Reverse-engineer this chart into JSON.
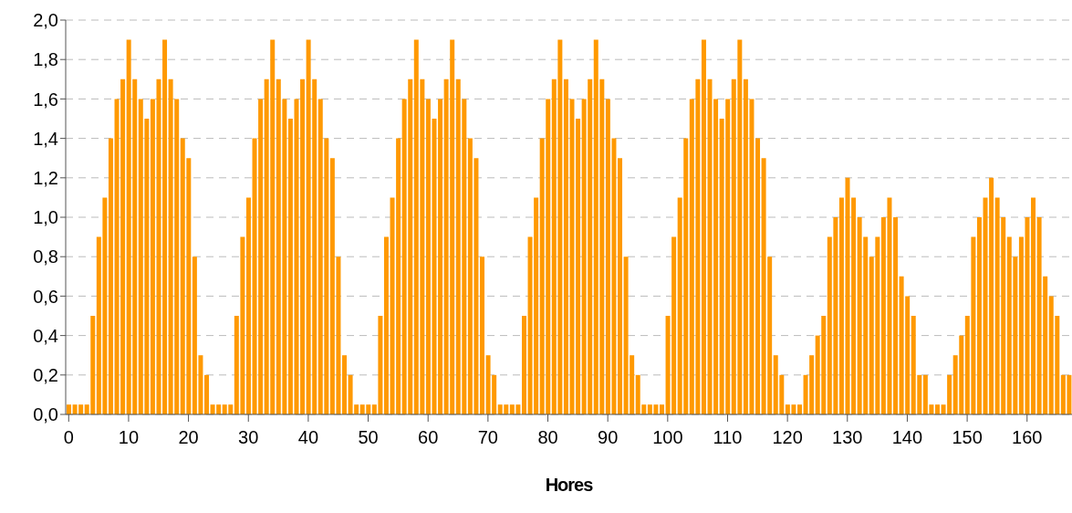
{
  "chart_data": {
    "type": "bar",
    "xlabel": "Hores",
    "color": "#ff9900",
    "grid": "y",
    "xlim": [
      -0.5,
      167.5
    ],
    "xticks": [
      0,
      10,
      20,
      30,
      40,
      50,
      60,
      70,
      80,
      90,
      100,
      110,
      120,
      130,
      140,
      150,
      160
    ],
    "ylim": [
      0,
      2
    ],
    "yticks": [
      {
        "value": 0,
        "label": "0,0"
      },
      {
        "value": 0.2,
        "label": "0,2"
      },
      {
        "value": 0.4,
        "label": "0,4"
      },
      {
        "value": 0.6,
        "label": "0,6"
      },
      {
        "value": 0.8,
        "label": "0,8"
      },
      {
        "value": 1,
        "label": "1,0"
      },
      {
        "value": 1.2,
        "label": "1,2"
      },
      {
        "value": 1.4,
        "label": "1,4"
      },
      {
        "value": 1.6,
        "label": "1,6"
      },
      {
        "value": 1.8,
        "label": "1,8"
      },
      {
        "value": 2,
        "label": "2,0"
      }
    ],
    "x": [
      0,
      1,
      2,
      3,
      4,
      5,
      6,
      7,
      8,
      9,
      10,
      11,
      12,
      13,
      14,
      15,
      16,
      17,
      18,
      19,
      20,
      21,
      22,
      23,
      24,
      25,
      26,
      27,
      28,
      29,
      30,
      31,
      32,
      33,
      34,
      35,
      36,
      37,
      38,
      39,
      40,
      41,
      42,
      43,
      44,
      45,
      46,
      47,
      48,
      49,
      50,
      51,
      52,
      53,
      54,
      55,
      56,
      57,
      58,
      59,
      60,
      61,
      62,
      63,
      64,
      65,
      66,
      67,
      68,
      69,
      70,
      71,
      72,
      73,
      74,
      75,
      76,
      77,
      78,
      79,
      80,
      81,
      82,
      83,
      84,
      85,
      86,
      87,
      88,
      89,
      90,
      91,
      92,
      93,
      94,
      95,
      96,
      97,
      98,
      99,
      100,
      101,
      102,
      103,
      104,
      105,
      106,
      107,
      108,
      109,
      110,
      111,
      112,
      113,
      114,
      115,
      116,
      117,
      118,
      119,
      120,
      121,
      122,
      123,
      124,
      125,
      126,
      127,
      128,
      129,
      130,
      131,
      132,
      133,
      134,
      135,
      136,
      137,
      138,
      139,
      140,
      141,
      142,
      143,
      144,
      145,
      146,
      147,
      148,
      149,
      150,
      151,
      152,
      153,
      154,
      155,
      156,
      157,
      158,
      159,
      160,
      161,
      162,
      163,
      164,
      165,
      166,
      167
    ],
    "values": [
      0.05,
      0.05,
      0.05,
      0.05,
      0.5,
      0.9,
      1.1,
      1.4,
      1.6,
      1.7,
      1.9,
      1.7,
      1.6,
      1.5,
      1.6,
      1.7,
      1.9,
      1.7,
      1.6,
      1.4,
      1.3,
      0.8,
      0.3,
      0.2,
      0.05,
      0.05,
      0.05,
      0.05,
      0.5,
      0.9,
      1.1,
      1.4,
      1.6,
      1.7,
      1.9,
      1.7,
      1.6,
      1.5,
      1.6,
      1.7,
      1.9,
      1.7,
      1.6,
      1.4,
      1.3,
      0.8,
      0.3,
      0.2,
      0.05,
      0.05,
      0.05,
      0.05,
      0.5,
      0.9,
      1.1,
      1.4,
      1.6,
      1.7,
      1.9,
      1.7,
      1.6,
      1.5,
      1.6,
      1.7,
      1.9,
      1.7,
      1.6,
      1.4,
      1.3,
      0.8,
      0.3,
      0.2,
      0.05,
      0.05,
      0.05,
      0.05,
      0.5,
      0.9,
      1.1,
      1.4,
      1.6,
      1.7,
      1.9,
      1.7,
      1.6,
      1.5,
      1.6,
      1.7,
      1.9,
      1.7,
      1.6,
      1.4,
      1.3,
      0.8,
      0.3,
      0.2,
      0.05,
      0.05,
      0.05,
      0.05,
      0.5,
      0.9,
      1.1,
      1.4,
      1.6,
      1.7,
      1.9,
      1.7,
      1.6,
      1.5,
      1.6,
      1.7,
      1.9,
      1.7,
      1.6,
      1.4,
      1.3,
      0.8,
      0.3,
      0.2,
      0.05,
      0.05,
      0.05,
      0.2,
      0.3,
      0.4,
      0.5,
      0.9,
      1.0,
      1.1,
      1.2,
      1.1,
      1.0,
      0.9,
      0.8,
      0.9,
      1.0,
      1.1,
      1.0,
      0.7,
      0.6,
      0.5,
      0.2,
      0.2,
      0.05,
      0.05,
      0.05,
      0.2,
      0.3,
      0.4,
      0.5,
      0.9,
      1.0,
      1.1,
      1.2,
      1.1,
      1.0,
      0.9,
      0.8,
      0.9,
      1.0,
      1.1,
      1.0,
      0.7,
      0.6,
      0.5,
      0.2,
      0.2
    ]
  }
}
